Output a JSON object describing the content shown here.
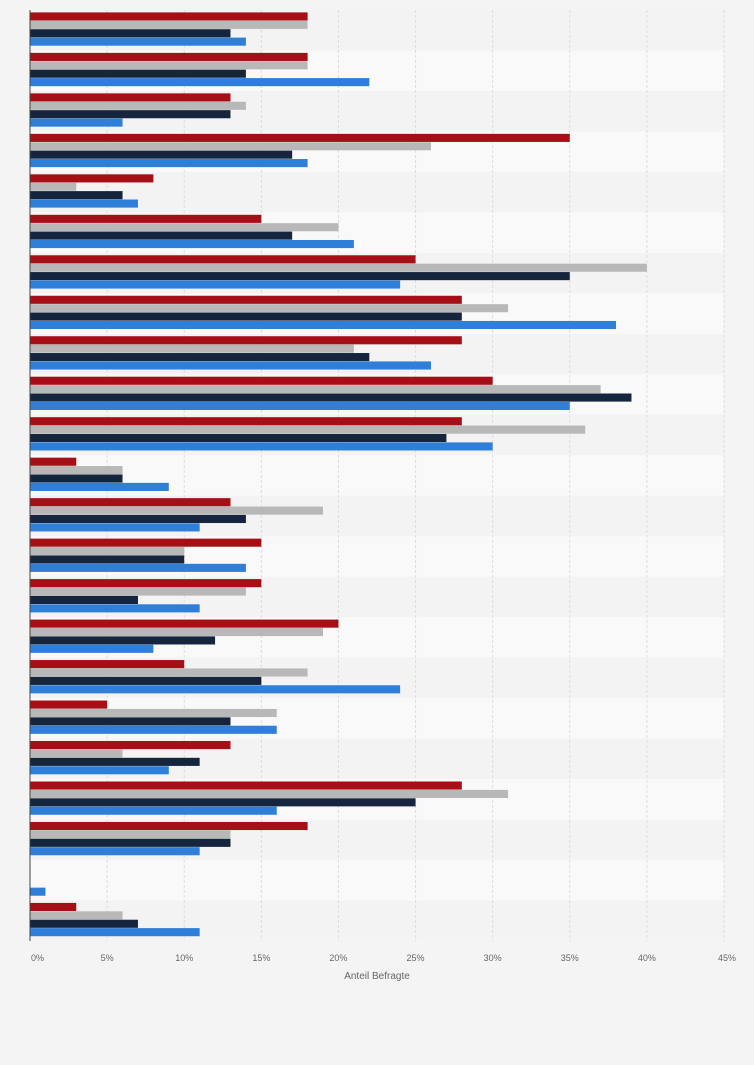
{
  "chart_data": {
    "type": "bar",
    "orientation": "horizontal",
    "xlabel": "Anteil Befragte",
    "xlim": [
      0,
      45
    ],
    "xticks": [
      0,
      5,
      10,
      15,
      20,
      25,
      30,
      35,
      40,
      45
    ],
    "tick_labels": [
      "0%",
      "5%",
      "10%",
      "15%",
      "20%",
      "25%",
      "30%",
      "35%",
      "40%",
      "45%"
    ],
    "grid": true,
    "categories": [
      "",
      "",
      "",
      "",
      "",
      "",
      "",
      "",
      "",
      "",
      "",
      "",
      "",
      "",
      "",
      "",
      "",
      "",
      "",
      "",
      "",
      "",
      ""
    ],
    "series": [
      {
        "color": "#a50f15",
        "values": [
          18,
          18,
          13,
          35,
          8,
          15,
          25,
          28,
          28,
          30,
          28,
          3,
          13,
          15,
          15,
          20,
          10,
          5,
          13,
          28,
          18,
          0,
          3
        ]
      },
      {
        "color": "#b8b8b8",
        "values": [
          18,
          18,
          14,
          26,
          3,
          20,
          40,
          31,
          21,
          37,
          36,
          6,
          19,
          10,
          14,
          19,
          18,
          16,
          6,
          31,
          13,
          0,
          6
        ]
      },
      {
        "color": "#14253d",
        "values": [
          13,
          14,
          13,
          17,
          6,
          17,
          35,
          28,
          22,
          39,
          27,
          6,
          14,
          10,
          7,
          12,
          15,
          13,
          11,
          25,
          13,
          0,
          7
        ]
      },
      {
        "color": "#2f7ed8",
        "values": [
          14,
          22,
          6,
          18,
          7,
          21,
          24,
          38,
          26,
          35,
          30,
          9,
          11,
          14,
          11,
          8,
          24,
          16,
          9,
          16,
          11,
          1,
          11
        ]
      }
    ]
  }
}
